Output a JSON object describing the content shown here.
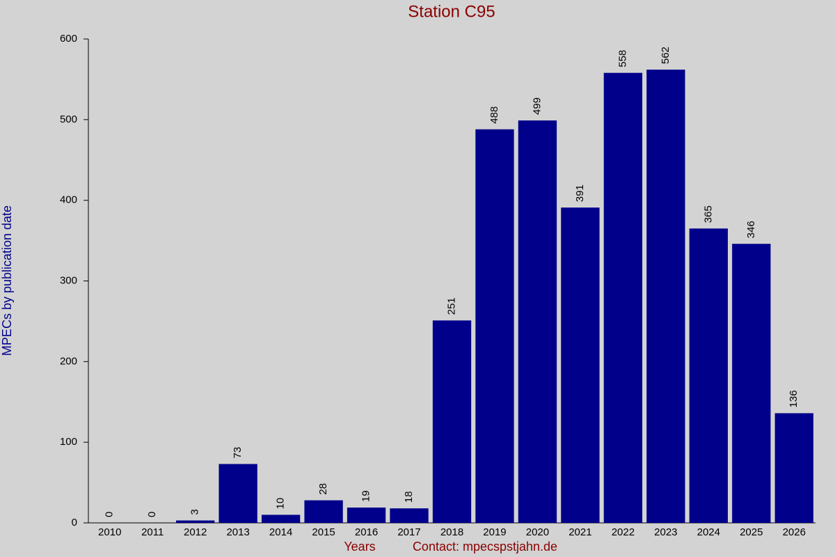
{
  "chart_data": {
    "type": "bar",
    "title": "Station C95",
    "x_label": "Years",
    "y_label": "MPECs by publication date",
    "footer": "Contact: mpecspstjahn.de",
    "categories": [
      "2010",
      "2011",
      "2012",
      "2013",
      "2014",
      "2015",
      "2016",
      "2017",
      "2018",
      "2019",
      "2020",
      "2021",
      "2022",
      "2023",
      "2024",
      "2025",
      "2026"
    ],
    "values": [
      0,
      0,
      3,
      73,
      10,
      28,
      19,
      18,
      251,
      488,
      499,
      391,
      558,
      562,
      365,
      346,
      136
    ],
    "color": "#00008b",
    "ylim": [
      0,
      600
    ],
    "yticks": [
      0,
      100,
      200,
      300,
      400,
      500,
      600
    ],
    "grid": false
  }
}
